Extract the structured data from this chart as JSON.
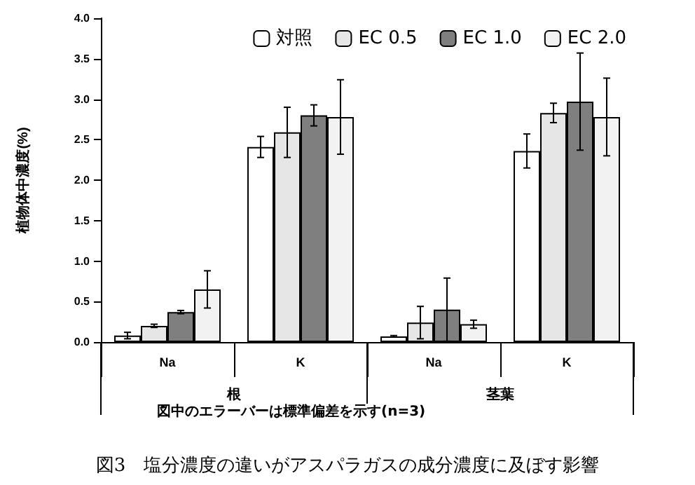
{
  "chart_data": {
    "type": "bar",
    "title": "図3　塩分濃度の違いがアスパラガスの成分濃度に及ぼす影響",
    "ylabel": "植物体中濃度(%)",
    "categories": [
      "Na",
      "K",
      "Na",
      "K"
    ],
    "annotations": [
      "根",
      "茎葉",
      "図中のエラーバーは標準偏差を示す(n=3)"
    ],
    "series": [
      {
        "name": "対照",
        "color": "#ffffff",
        "values": [
          0.08,
          2.41,
          0.07,
          2.36
        ],
        "errors": [
          0.04,
          0.13,
          0.01,
          0.21
        ]
      },
      {
        "name": "EC 0.5",
        "color": "#e6e6e6",
        "values": [
          0.2,
          2.59,
          0.24,
          2.83
        ],
        "errors": [
          0.02,
          0.31,
          0.2,
          0.12
        ]
      },
      {
        "name": "EC 1.0",
        "color": "#7f7f7f",
        "values": [
          0.37,
          2.8,
          0.4,
          2.97
        ],
        "errors": [
          0.02,
          0.13,
          0.39,
          0.6
        ]
      },
      {
        "name": "EC 2.0",
        "color": "#f2f2f2",
        "values": [
          0.65,
          2.78,
          0.22,
          2.78
        ],
        "errors": [
          0.23,
          0.46,
          0.05,
          0.48
        ]
      }
    ],
    "ylim": [
      0,
      4
    ],
    "yticks": [
      {
        "value": 0,
        "label": "0.0"
      },
      {
        "value": 0.5,
        "label": "0.5"
      },
      {
        "value": 1,
        "label": "1.0"
      },
      {
        "value": 1.5,
        "label": "1.5"
      },
      {
        "value": 2,
        "label": "2.0"
      },
      {
        "value": 2.5,
        "label": "2.5"
      },
      {
        "value": 3,
        "label": "3.0"
      },
      {
        "value": 3.5,
        "label": "3.5"
      },
      {
        "value": 4,
        "label": "4.0"
      }
    ],
    "grid": false,
    "legend": "top right"
  }
}
